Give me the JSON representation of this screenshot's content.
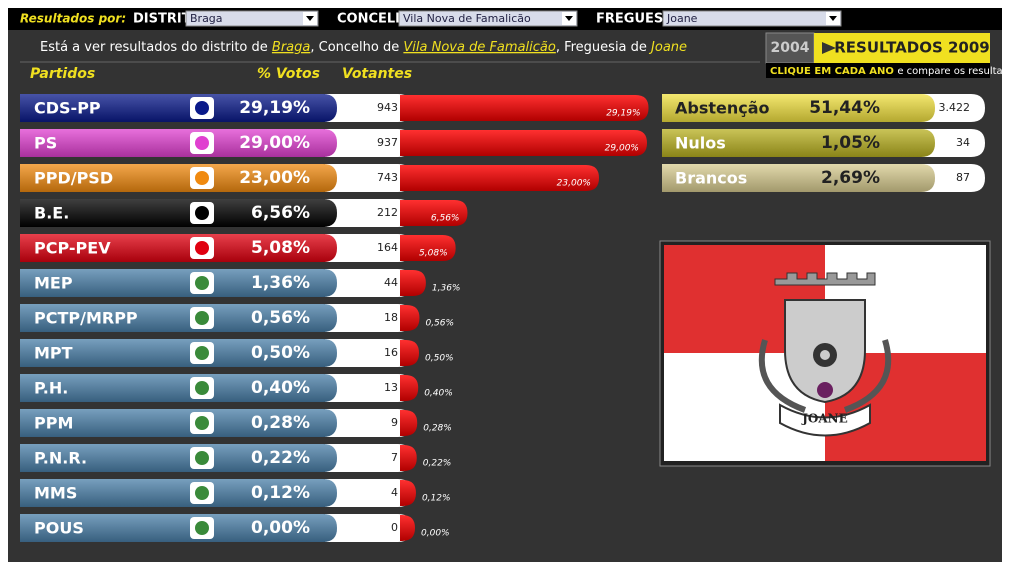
{
  "filters": {
    "label": "Resultados por:",
    "distrito_label": "DISTRITO",
    "distrito": "Braga",
    "concelho_label": "CONCELHO",
    "concelho": "Vila Nova de Famalicão",
    "freguesia_label": "FREGUESIA",
    "freguesia": "Joane"
  },
  "summary": {
    "prefix": "Está a ver resultados do distrito de",
    "distrito": "Braga",
    "concelho_prefix": ", Concelho de",
    "concelho": "Vila Nova de Famalicão",
    "freguesia_prefix": ", Freguesia de",
    "freguesia": "Joane"
  },
  "years": {
    "previous": "2004",
    "current": "RESULTADOS 2009",
    "cta": "CLIQUE EM CADA ANO",
    "cta_rest": "e compare os resultados"
  },
  "headers": {
    "party": "Partidos",
    "pct": "% Votos",
    "voters": "Votantes"
  },
  "parties": [
    {
      "name": "CDS-PP",
      "pct": 29.19,
      "pct_label": "29,19%",
      "votes": 943,
      "color": "#0a1a8a"
    },
    {
      "name": "PS",
      "pct": 29.0,
      "pct_label": "29,00%",
      "votes": 937,
      "color": "#e040d0"
    },
    {
      "name": "PPD/PSD",
      "pct": 23.0,
      "pct_label": "23,00%",
      "votes": 743,
      "color": "#f08a10"
    },
    {
      "name": "B.E.",
      "pct": 6.56,
      "pct_label": "6,56%",
      "votes": 212,
      "color": "#000000"
    },
    {
      "name": "PCP-PEV",
      "pct": 5.08,
      "pct_label": "5,08%",
      "votes": 164,
      "color": "#e00010"
    },
    {
      "name": "MEP",
      "pct": 1.36,
      "pct_label": "1,36%",
      "votes": 44,
      "color": "#4a7fa8"
    },
    {
      "name": "PCTP/MRPP",
      "pct": 0.56,
      "pct_label": "0,56%",
      "votes": 18,
      "color": "#4a7fa8"
    },
    {
      "name": "MPT",
      "pct": 0.5,
      "pct_label": "0,50%",
      "votes": 16,
      "color": "#4a7fa8"
    },
    {
      "name": "P.H.",
      "pct": 0.4,
      "pct_label": "0,40%",
      "votes": 13,
      "color": "#4a7fa8"
    },
    {
      "name": "PPM",
      "pct": 0.28,
      "pct_label": "0,28%",
      "votes": 9,
      "color": "#4a7fa8"
    },
    {
      "name": "P.N.R.",
      "pct": 0.22,
      "pct_label": "0,22%",
      "votes": 7,
      "color": "#4a7fa8"
    },
    {
      "name": "MMS",
      "pct": 0.12,
      "pct_label": "0,12%",
      "votes": 4,
      "color": "#4a7fa8"
    },
    {
      "name": "POUS",
      "pct": 0.0,
      "pct_label": "0,00%",
      "votes": 0,
      "color": "#4a7fa8"
    }
  ],
  "others": [
    {
      "name": "Abstenção",
      "pct": 51.44,
      "pct_label": "51,44%",
      "votes": 3422,
      "votes_label": "3.422",
      "color": "#f0e040"
    },
    {
      "name": "Nulos",
      "pct": 1.05,
      "pct_label": "1,05%",
      "votes": 34,
      "color": "#b8b020"
    },
    {
      "name": "Brancos",
      "pct": 2.69,
      "pct_label": "2,69%",
      "votes": 87,
      "color": "#d8cc90"
    }
  ],
  "flag_label": "JOANE"
}
